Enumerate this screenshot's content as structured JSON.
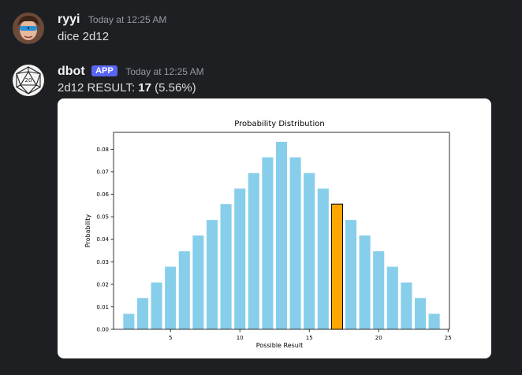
{
  "messages": [
    {
      "username": "ryyi",
      "timestamp": "Today at 12:25 AM",
      "text": "dice 2d12",
      "avatar": "user-avatar"
    },
    {
      "username": "dbot",
      "badge": "APP",
      "timestamp": "Today at 12:25 AM",
      "result_prefix": "2d12 RESULT: ",
      "result_value": "17",
      "result_suffix": " (5.56%)",
      "avatar": "d20-icon"
    }
  ],
  "colors": {
    "bar": "#87ceeb",
    "highlight": "#ffa500",
    "badge": "#5865f2",
    "background": "#1e1f22"
  },
  "chart_data": {
    "type": "bar",
    "title": "Probability Distribution",
    "xlabel": "Possible Result",
    "ylabel": "Probability",
    "categories": [
      2,
      3,
      4,
      5,
      6,
      7,
      8,
      9,
      10,
      11,
      12,
      13,
      14,
      15,
      16,
      17,
      18,
      19,
      20,
      21,
      22,
      23,
      24
    ],
    "values": [
      0.0069,
      0.0139,
      0.0208,
      0.0278,
      0.0347,
      0.0417,
      0.0486,
      0.0556,
      0.0625,
      0.0694,
      0.0764,
      0.0833,
      0.0764,
      0.0694,
      0.0625,
      0.0556,
      0.0486,
      0.0417,
      0.0347,
      0.0278,
      0.0208,
      0.0139,
      0.0069
    ],
    "highlight": 17,
    "xlim": [
      0.9,
      25.1
    ],
    "ylim": [
      0,
      0.0875
    ],
    "xticks": [
      5,
      10,
      15,
      20,
      25
    ],
    "yticks": [
      0.0,
      0.01,
      0.02,
      0.03,
      0.04,
      0.05,
      0.06,
      0.07,
      0.08
    ],
    "ytick_labels": [
      "0.00",
      "0.01",
      "0.02",
      "0.03",
      "0.04",
      "0.05",
      "0.06",
      "0.07",
      "0.08"
    ],
    "grid": false
  }
}
